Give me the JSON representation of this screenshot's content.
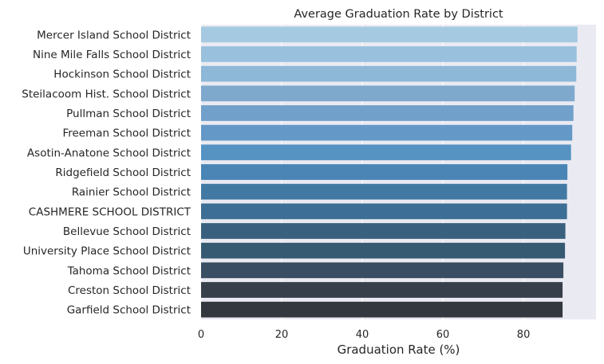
{
  "chart_data": {
    "type": "bar",
    "orientation": "horizontal",
    "title": "Average Graduation Rate by District",
    "xlabel": "Graduation Rate (%)",
    "ylabel": "",
    "xlim": [
      0,
      98
    ],
    "xticks": [
      0,
      20,
      40,
      60,
      80
    ],
    "grid": true,
    "categories": [
      "Mercer Island School District",
      "Nine Mile Falls School District",
      "Hockinson School District",
      "Steilacoom Hist. School District",
      "Pullman School District",
      "Freeman School District",
      "Asotin-Anatone School District",
      "Ridgefield School District",
      "Rainier School District",
      "CASHMERE SCHOOL DISTRICT",
      "Bellevue School District",
      "University Place School District",
      "Tahoma School District",
      "Creston School District",
      "Garfield School District"
    ],
    "values": [
      93.4,
      93.2,
      93.1,
      92.7,
      92.4,
      92.1,
      91.8,
      90.9,
      90.8,
      90.8,
      90.4,
      90.3,
      89.9,
      89.7,
      89.7
    ],
    "colors": [
      "#a5c9e0",
      "#99c1dd",
      "#8db8d8",
      "#7ea9cd",
      "#71a0cb",
      "#6499c7",
      "#5693c3",
      "#4a85b6",
      "#4279a3",
      "#3d6e95",
      "#39617f",
      "#375a73",
      "#394e62",
      "#363f4a",
      "#32383e"
    ],
    "plot_background": "#eaeaf2",
    "grid_color": "#ffffff"
  }
}
